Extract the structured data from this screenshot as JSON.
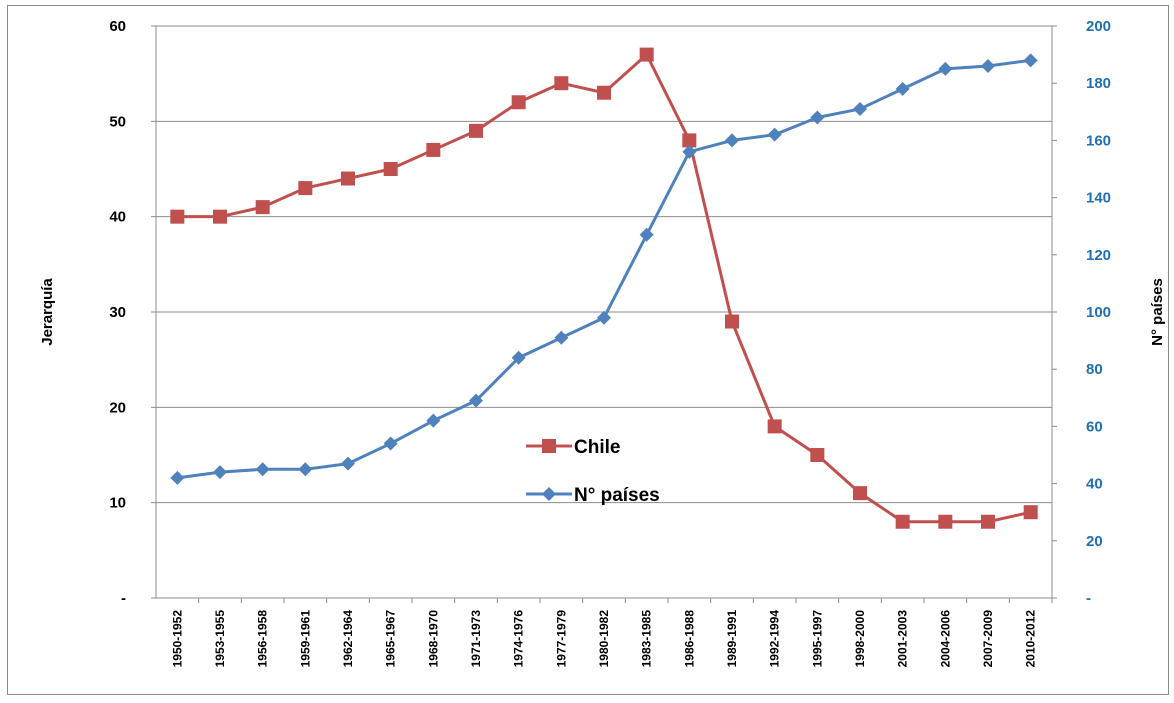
{
  "chart_data": {
    "type": "line",
    "categories": [
      "1950-1952",
      "1953-1955",
      "1956-1958",
      "1959-1961",
      "1962-1964",
      "1965-1967",
      "1968-1970",
      "1971-1973",
      "1974-1976",
      "1977-1979",
      "1980-1982",
      "1983-1985",
      "1986-1988",
      "1989-1991",
      "1992-1994",
      "1995-1997",
      "1998-2000",
      "2001-2003",
      "2004-2006",
      "2007-2009",
      "2010-2012"
    ],
    "series": [
      {
        "name": "Chile",
        "axis": "left",
        "color": "#c0504d",
        "marker": "square",
        "values": [
          40,
          40,
          41,
          43,
          44,
          45,
          47,
          49,
          52,
          54,
          53,
          57,
          48,
          29,
          18,
          15,
          11,
          8,
          8,
          8,
          9
        ]
      },
      {
        "name": "N° países",
        "axis": "right",
        "color": "#4f81bd",
        "marker": "diamond",
        "values": [
          42,
          44,
          45,
          45,
          47,
          54,
          62,
          69,
          84,
          91,
          98,
          127,
          156,
          160,
          162,
          168,
          171,
          178,
          185,
          186,
          188
        ]
      }
    ],
    "ylabel": "Jerarquía",
    "y2label": "N° países",
    "ylim": [
      0,
      60
    ],
    "y2lim": [
      0,
      200
    ],
    "yticks": [
      "-",
      "10",
      "20",
      "30",
      "40",
      "50",
      "60"
    ],
    "y2ticks": [
      "-",
      "20",
      "40",
      "60",
      "80",
      "100",
      "120",
      "140",
      "160",
      "180",
      "200"
    ],
    "grid": true,
    "legend_position": "center"
  }
}
